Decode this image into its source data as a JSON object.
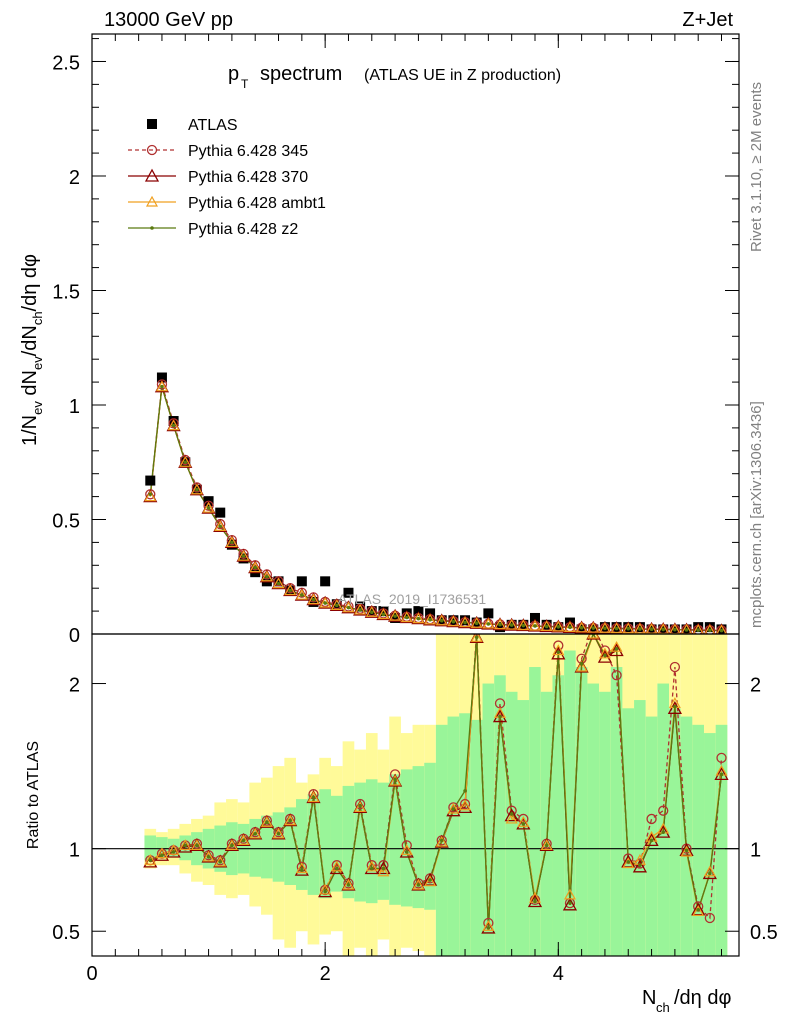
{
  "header": {
    "energy": "13000 GeV pp",
    "process": "Z+Jet"
  },
  "side": {
    "rivet": "Rivet 3.1.10, ≥ 2M events",
    "mcplots": "mcplots.cern.ch [arXiv:1306.3436]"
  },
  "chart_data": [
    {
      "type": "line",
      "title": "p_T spectrum",
      "title_main": "p",
      "title_sub": "T",
      "title_rest": "spectrum",
      "subtitle": "(ATLAS UE in Z production)",
      "watermark": "ATLAS_2019_I1736531",
      "ylabel": "1/N_ev dN_ev/dN_ch/dη dφ",
      "xlim": [
        0,
        5.55
      ],
      "ylim": [
        0,
        2.62
      ],
      "yticks": [
        "0",
        "0.5",
        "1",
        "1.5",
        "2",
        "2.5"
      ],
      "ytick_values": [
        0,
        0.5,
        1,
        1.5,
        2,
        2.5
      ],
      "legend_position": "top-left",
      "x": [
        0.5,
        0.6,
        0.7,
        0.8,
        0.9,
        1.0,
        1.1,
        1.2,
        1.3,
        1.4,
        1.5,
        1.6,
        1.7,
        1.8,
        1.9,
        2.0,
        2.1,
        2.2,
        2.3,
        2.4,
        2.5,
        2.6,
        2.7,
        2.8,
        2.9,
        3.0,
        3.1,
        3.2,
        3.3,
        3.4,
        3.5,
        3.6,
        3.7,
        3.8,
        3.9,
        4.0,
        4.1,
        4.2,
        4.3,
        4.4,
        4.5,
        4.6,
        4.7,
        4.8,
        4.9,
        5.0,
        5.1,
        5.2,
        5.3,
        5.4
      ],
      "series": [
        {
          "name": "ATLAS",
          "color": "#000000",
          "marker": "square",
          "values": [
            0.67,
            1.12,
            0.93,
            0.75,
            0.63,
            0.58,
            0.53,
            0.39,
            0.33,
            0.27,
            0.23,
            0.23,
            0.19,
            0.23,
            0.14,
            0.23,
            0.13,
            0.18,
            0.12,
            0.1,
            0.1,
            0.07,
            0.09,
            0.1,
            0.09,
            0.06,
            0.06,
            0.06,
            0.05,
            0.09,
            0.03,
            0.04,
            0.04,
            0.07,
            0.04,
            0.03,
            0.05,
            0.02,
            0.02,
            0.03,
            0.03,
            0.03,
            0.03,
            0.02,
            0.02,
            0.02,
            0.02,
            0.03,
            0.03,
            0.02
          ]
        },
        {
          "name": "Pythia 6.428 345",
          "color": "#b03030",
          "marker": "circle",
          "dashed": true,
          "values": [
            0.61,
            1.09,
            0.92,
            0.76,
            0.64,
            0.56,
            0.48,
            0.41,
            0.35,
            0.3,
            0.26,
            0.23,
            0.2,
            0.18,
            0.16,
            0.14,
            0.13,
            0.12,
            0.11,
            0.1,
            0.09,
            0.08,
            0.075,
            0.07,
            0.065,
            0.06,
            0.056,
            0.052,
            0.048,
            0.045,
            0.042,
            0.04,
            0.038,
            0.036,
            0.034,
            0.032,
            0.03,
            0.028,
            0.027,
            0.026,
            0.025,
            0.024,
            0.023,
            0.022,
            0.021,
            0.02,
            0.019,
            0.018,
            0.017,
            0.016
          ]
        },
        {
          "name": "Pythia 6.428 370",
          "color": "#8b0000",
          "marker": "triangle",
          "values": [
            0.6,
            1.08,
            0.91,
            0.75,
            0.63,
            0.55,
            0.47,
            0.4,
            0.34,
            0.29,
            0.25,
            0.22,
            0.19,
            0.17,
            0.15,
            0.135,
            0.125,
            0.115,
            0.105,
            0.095,
            0.085,
            0.078,
            0.072,
            0.067,
            0.062,
            0.058,
            0.054,
            0.05,
            0.047,
            0.044,
            0.041,
            0.039,
            0.037,
            0.035,
            0.033,
            0.031,
            0.029,
            0.027,
            0.026,
            0.025,
            0.024,
            0.023,
            0.022,
            0.021,
            0.02,
            0.019,
            0.018,
            0.017,
            0.016,
            0.015
          ]
        },
        {
          "name": "Pythia 6.428 ambt1",
          "color": "#f0a020",
          "marker": "triangle-open",
          "values": [
            0.6,
            1.08,
            0.91,
            0.75,
            0.63,
            0.55,
            0.47,
            0.4,
            0.34,
            0.29,
            0.25,
            0.22,
            0.19,
            0.17,
            0.15,
            0.135,
            0.125,
            0.115,
            0.105,
            0.095,
            0.085,
            0.078,
            0.072,
            0.067,
            0.062,
            0.058,
            0.054,
            0.05,
            0.047,
            0.044,
            0.041,
            0.039,
            0.037,
            0.035,
            0.033,
            0.031,
            0.029,
            0.027,
            0.026,
            0.025,
            0.024,
            0.023,
            0.022,
            0.021,
            0.02,
            0.019,
            0.018,
            0.017,
            0.016,
            0.015
          ]
        },
        {
          "name": "Pythia 6.428 z2",
          "color": "#5a7a10",
          "marker": "dot",
          "values": [
            0.61,
            1.08,
            0.91,
            0.75,
            0.63,
            0.55,
            0.47,
            0.4,
            0.34,
            0.29,
            0.25,
            0.22,
            0.19,
            0.17,
            0.15,
            0.135,
            0.125,
            0.115,
            0.105,
            0.095,
            0.085,
            0.078,
            0.072,
            0.067,
            0.062,
            0.058,
            0.054,
            0.05,
            0.047,
            0.044,
            0.041,
            0.039,
            0.037,
            0.035,
            0.033,
            0.031,
            0.029,
            0.027,
            0.026,
            0.025,
            0.024,
            0.023,
            0.022,
            0.021,
            0.02,
            0.019,
            0.018,
            0.017,
            0.016,
            0.015
          ]
        }
      ]
    },
    {
      "type": "line",
      "ylabel": "Ratio to ATLAS",
      "xlabel": "N_ch/dη dφ",
      "xlabel_main": "N",
      "xlabel_sub": "ch",
      "xlabel_rest": "/dη dφ",
      "xlim": [
        0,
        5.55
      ],
      "ylim": [
        0.35,
        2.3
      ],
      "xticks": [
        "0",
        "2",
        "4"
      ],
      "xtick_values": [
        0,
        2,
        4
      ],
      "yticks": [
        "0.5",
        "1",
        "2"
      ],
      "ytick_values": [
        0.5,
        1,
        2
      ],
      "x": [
        0.5,
        0.6,
        0.7,
        0.8,
        0.9,
        1.0,
        1.1,
        1.2,
        1.3,
        1.4,
        1.5,
        1.6,
        1.7,
        1.8,
        1.9,
        2.0,
        2.1,
        2.2,
        2.3,
        2.4,
        2.5,
        2.6,
        2.7,
        2.8,
        2.9,
        3.0,
        3.1,
        3.2,
        3.3,
        3.4,
        3.5,
        3.6,
        3.7,
        3.8,
        3.9,
        4.0,
        4.1,
        4.2,
        4.3,
        4.4,
        4.5,
        4.6,
        4.7,
        4.8,
        4.9,
        5.0,
        5.1,
        5.2,
        5.3,
        5.4
      ],
      "band_green": [
        [
          0.93,
          1.08
        ],
        [
          0.94,
          1.07
        ],
        [
          0.95,
          1.06
        ],
        [
          0.93,
          1.08
        ],
        [
          0.9,
          1.1
        ],
        [
          0.88,
          1.12
        ],
        [
          0.86,
          1.14
        ],
        [
          0.84,
          1.16
        ],
        [
          0.85,
          1.15
        ],
        [
          0.83,
          1.18
        ],
        [
          0.82,
          1.2
        ],
        [
          0.8,
          1.22
        ],
        [
          0.78,
          1.25
        ],
        [
          0.75,
          1.3
        ],
        [
          0.72,
          1.33
        ],
        [
          0.7,
          1.36
        ],
        [
          0.74,
          1.32
        ],
        [
          0.7,
          1.38
        ],
        [
          0.68,
          1.4
        ],
        [
          0.67,
          1.42
        ],
        [
          0.69,
          1.4
        ],
        [
          0.66,
          1.45
        ],
        [
          0.65,
          1.48
        ],
        [
          0.64,
          1.5
        ],
        [
          0.63,
          1.52
        ],
        [
          0.35,
          1.75
        ],
        [
          0.35,
          1.8
        ],
        [
          0.35,
          1.82
        ],
        [
          0.35,
          1.78
        ],
        [
          0.35,
          2.0
        ],
        [
          0.35,
          2.05
        ],
        [
          0.35,
          1.95
        ],
        [
          0.35,
          1.9
        ],
        [
          0.35,
          2.1
        ],
        [
          0.35,
          1.95
        ],
        [
          0.35,
          2.05
        ],
        [
          0.35,
          2.2
        ],
        [
          0.35,
          2.1
        ],
        [
          0.35,
          2.0
        ],
        [
          0.35,
          1.95
        ],
        [
          0.35,
          2.1
        ],
        [
          0.35,
          1.85
        ],
        [
          0.35,
          1.9
        ],
        [
          0.35,
          1.8
        ],
        [
          0.35,
          2.0
        ],
        [
          0.35,
          1.85
        ],
        [
          0.35,
          1.8
        ],
        [
          0.35,
          1.75
        ],
        [
          0.35,
          1.7
        ],
        [
          0.35,
          1.75
        ]
      ],
      "band_yellow": [
        [
          0.88,
          1.12
        ],
        [
          0.9,
          1.1
        ],
        [
          0.9,
          1.12
        ],
        [
          0.85,
          1.15
        ],
        [
          0.8,
          1.18
        ],
        [
          0.78,
          1.2
        ],
        [
          0.72,
          1.28
        ],
        [
          0.7,
          1.3
        ],
        [
          0.72,
          1.28
        ],
        [
          0.65,
          1.4
        ],
        [
          0.6,
          1.43
        ],
        [
          0.45,
          1.5
        ],
        [
          0.4,
          1.55
        ],
        [
          0.5,
          1.4
        ],
        [
          0.42,
          1.45
        ],
        [
          0.48,
          1.55
        ],
        [
          0.5,
          1.5
        ],
        [
          0.35,
          1.65
        ],
        [
          0.4,
          1.6
        ],
        [
          0.35,
          1.7
        ],
        [
          0.45,
          1.6
        ],
        [
          0.35,
          1.8
        ],
        [
          0.4,
          1.7
        ],
        [
          0.38,
          1.75
        ],
        [
          0.35,
          1.75
        ],
        [
          0.35,
          2.3
        ],
        [
          0.35,
          2.3
        ],
        [
          0.35,
          2.3
        ],
        [
          0.35,
          2.3
        ],
        [
          0.35,
          2.3
        ],
        [
          0.35,
          2.3
        ],
        [
          0.35,
          2.3
        ],
        [
          0.35,
          2.3
        ],
        [
          0.35,
          2.3
        ],
        [
          0.35,
          2.3
        ],
        [
          0.35,
          2.3
        ],
        [
          0.35,
          2.3
        ],
        [
          0.35,
          2.3
        ],
        [
          0.35,
          2.3
        ],
        [
          0.35,
          2.3
        ],
        [
          0.35,
          2.3
        ],
        [
          0.35,
          2.3
        ],
        [
          0.35,
          2.3
        ],
        [
          0.35,
          2.3
        ],
        [
          0.35,
          2.3
        ],
        [
          0.35,
          2.3
        ],
        [
          0.35,
          2.3
        ],
        [
          0.35,
          2.3
        ],
        [
          0.35,
          2.3
        ],
        [
          0.35,
          2.3
        ]
      ],
      "series": [
        {
          "name": "Pythia 6.428 345",
          "color": "#b03030",
          "marker": "circle",
          "dashed": true,
          "values": [
            0.93,
            0.97,
            0.99,
            1.02,
            1.03,
            0.96,
            0.93,
            1.03,
            1.06,
            1.1,
            1.17,
            1.1,
            1.18,
            0.89,
            1.33,
            0.75,
            0.9,
            0.79,
            1.27,
            0.9,
            0.9,
            1.45,
            1.02,
            0.79,
            0.82,
            1.05,
            1.25,
            1.27,
            2.32,
            0.55,
            1.88,
            1.23,
            1.18,
            0.69,
            1.03,
            2.23,
            0.67,
            2.15,
            2.35,
            2.2,
            2.05,
            0.94,
            0.91,
            1.18,
            1.23,
            2.1,
            1.0,
            0.65,
            0.58,
            1.55
          ]
        },
        {
          "name": "Pythia 6.428 370",
          "color": "#8b0000",
          "marker": "triangle",
          "values": [
            0.92,
            0.96,
            0.98,
            1.01,
            1.02,
            0.95,
            0.92,
            1.02,
            1.05,
            1.09,
            1.16,
            1.09,
            1.17,
            0.87,
            1.31,
            0.74,
            0.88,
            0.78,
            1.25,
            0.88,
            0.88,
            1.41,
            0.98,
            0.78,
            0.81,
            1.04,
            1.23,
            1.25,
            2.28,
            0.52,
            1.8,
            1.2,
            1.15,
            0.68,
            1.02,
            2.18,
            0.66,
            2.1,
            2.3,
            2.16,
            2.2,
            0.92,
            0.89,
            1.05,
            1.1,
            1.85,
            0.99,
            0.63,
            0.85,
            1.45
          ]
        },
        {
          "name": "Pythia 6.428 ambt1",
          "color": "#f0a020",
          "marker": "triangle-open",
          "values": [
            0.93,
            0.97,
            0.99,
            1.02,
            1.02,
            0.95,
            0.92,
            1.02,
            1.05,
            1.09,
            1.16,
            1.09,
            1.17,
            0.88,
            1.31,
            0.75,
            0.89,
            0.78,
            1.25,
            0.89,
            0.86,
            1.41,
            0.99,
            0.78,
            0.8,
            1.04,
            1.24,
            1.26,
            2.28,
            0.53,
            1.82,
            1.18,
            1.16,
            0.7,
            1.02,
            2.2,
            0.72,
            2.1,
            2.3,
            2.18,
            2.22,
            0.91,
            0.93,
            1.07,
            1.12,
            1.88,
            0.98,
            0.62,
            0.86,
            1.47
          ]
        },
        {
          "name": "Pythia 6.428 z2",
          "color": "#5a7a10",
          "marker": "dot",
          "values": [
            0.93,
            0.96,
            0.98,
            1.02,
            1.02,
            0.95,
            0.92,
            1.02,
            1.05,
            1.09,
            1.16,
            1.09,
            1.17,
            0.87,
            1.31,
            0.74,
            0.88,
            0.78,
            1.26,
            0.88,
            0.88,
            1.42,
            0.98,
            0.78,
            0.81,
            1.05,
            1.24,
            1.35,
            2.28,
            0.52,
            1.8,
            1.21,
            1.15,
            0.68,
            1.02,
            2.19,
            0.67,
            2.12,
            2.3,
            2.17,
            2.21,
            0.92,
            0.9,
            1.05,
            1.1,
            1.86,
            0.99,
            0.63,
            0.85,
            1.45
          ]
        }
      ]
    }
  ]
}
